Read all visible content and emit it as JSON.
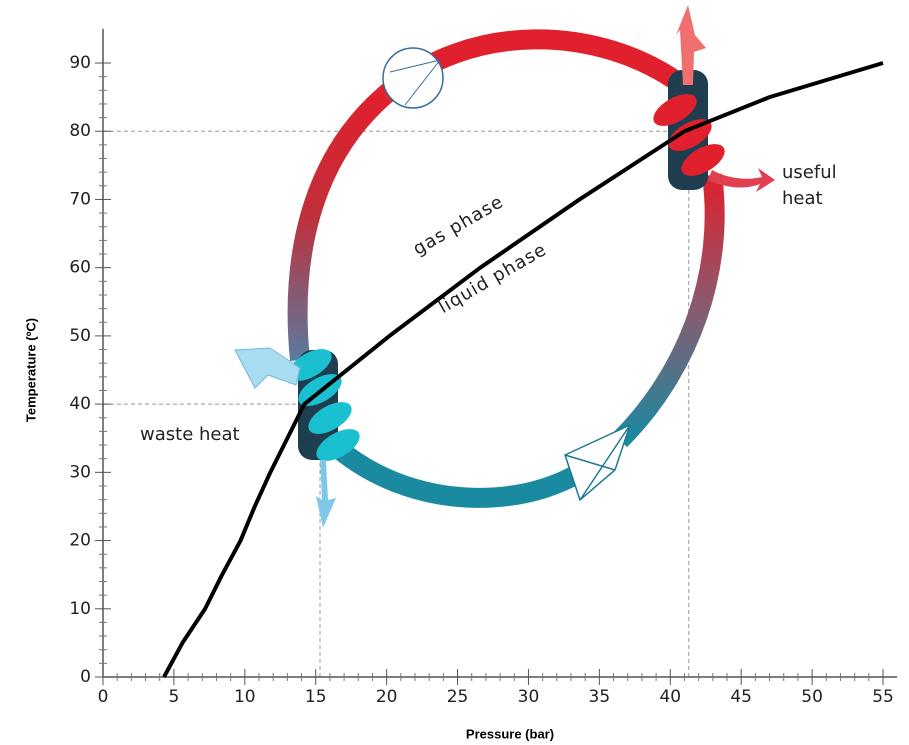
{
  "chart_data": {
    "type": "line",
    "x_label": "Pressure (bar)",
    "y_label": "Temperature (ºC)",
    "series": [
      {
        "color": "#000000",
        "x": [
          4.3,
          5.6,
          7.2,
          8.4,
          9.7,
          10.7,
          11.8,
          14.2,
          20.2,
          26.6,
          33.6,
          41,
          47,
          55
        ],
        "values": [
          0,
          5,
          10,
          15,
          20,
          25,
          30,
          40,
          50,
          60,
          70,
          80,
          85,
          90
        ]
      }
    ],
    "xlim": [
      0,
      56
    ],
    "ylim": [
      0,
      95
    ],
    "xticks": [
      0,
      5,
      10,
      15,
      20,
      25,
      30,
      35,
      40,
      45,
      50,
      55
    ],
    "yticks": [
      0,
      10,
      20,
      30,
      40,
      50,
      60,
      70,
      80,
      90
    ],
    "reference_points": [
      {
        "x": 41.3,
        "y": 80
      },
      {
        "x": 15.3,
        "y": 40
      }
    ],
    "annotations": [
      "gas phase",
      "liquid phase",
      "useful heat",
      "waste heat"
    ]
  }
}
